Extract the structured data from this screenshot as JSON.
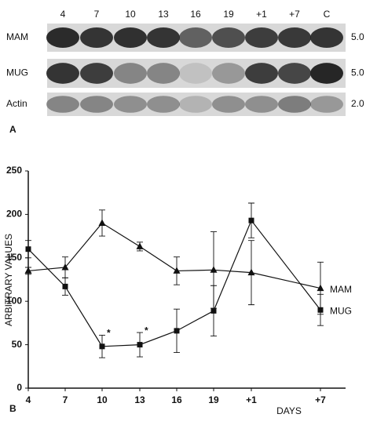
{
  "panel_a": {
    "label": "A",
    "lanes": [
      "4",
      "7",
      "10",
      "13",
      "16",
      "19",
      "+1",
      "+7",
      "C"
    ],
    "rows": [
      {
        "name": "MAM",
        "size": "5.0"
      },
      {
        "name": "MUG",
        "size": "5.0"
      },
      {
        "name": "Actin",
        "size": "2.0"
      }
    ]
  },
  "chart_data": {
    "type": "line",
    "panel_label": "B",
    "ylabel": "ARBITRARY VALUES",
    "xlabel": "DAYS",
    "categories": [
      "4",
      "7",
      "10",
      "13",
      "16",
      "19",
      "+1",
      "+7"
    ],
    "series": [
      {
        "name": "MAM",
        "color": "#111111",
        "marker": "triangle",
        "values": [
          135,
          139,
          190,
          163,
          135,
          136,
          133,
          115
        ],
        "errors": [
          4,
          12,
          15,
          5,
          16,
          44,
          37,
          30
        ]
      },
      {
        "name": "MUG",
        "color": "#111111",
        "marker": "square",
        "values": [
          160,
          117,
          48,
          50,
          66,
          89,
          193,
          90
        ],
        "errors": [
          10,
          10,
          13,
          14,
          25,
          29,
          20,
          18
        ]
      }
    ],
    "annotations": [
      {
        "text": "*"
      },
      {
        "text": "*"
      }
    ],
    "ylim": [
      0,
      250
    ],
    "yticks": [
      0,
      50,
      100,
      150,
      200,
      250
    ],
    "grid": false
  }
}
